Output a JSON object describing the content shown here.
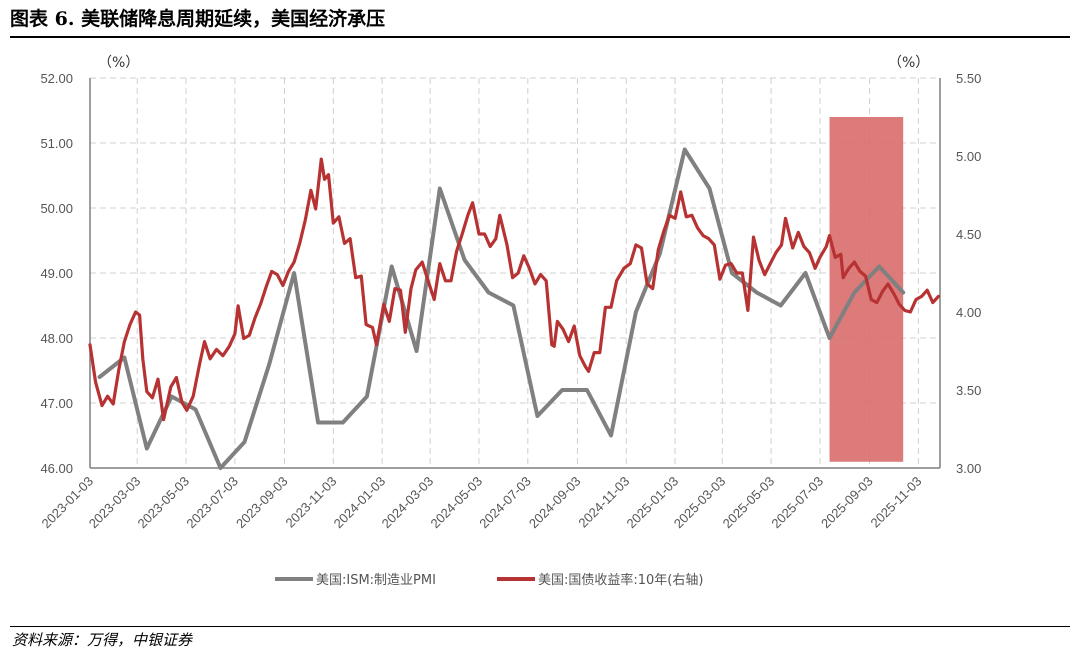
{
  "figure": {
    "title": "图表 6. 美联储降息周期延续，美国经济承压",
    "source": "资料来源：万得，中银证券"
  },
  "chart_data": {
    "type": "line",
    "left_axis_unit": "（%）",
    "right_axis_unit": "（%）",
    "y_left": {
      "min": 46.0,
      "max": 52.0,
      "ticks": [
        "46.00",
        "47.00",
        "48.00",
        "49.00",
        "50.00",
        "51.00",
        "52.00"
      ]
    },
    "y_right": {
      "min": 3.0,
      "max": 5.5,
      "ticks": [
        "3.00",
        "3.50",
        "4.00",
        "4.50",
        "5.00",
        "5.50"
      ]
    },
    "x_range": [
      "2023-01-03",
      "2025-11-30"
    ],
    "x_ticks": [
      "2023-01-03",
      "2023-03-03",
      "2023-05-03",
      "2023-07-03",
      "2023-09-03",
      "2023-11-03",
      "2024-01-03",
      "2024-03-03",
      "2024-05-03",
      "2024-07-03",
      "2024-09-03",
      "2024-11-03",
      "2025-01-03",
      "2025-03-03",
      "2025-05-03",
      "2025-07-03",
      "2025-09-03",
      "2025-11-03"
    ],
    "grid": true,
    "legend_position": "bottom",
    "highlight": {
      "x_start": "2025-07-15",
      "x_end": "2025-10-15",
      "y_right_low": 3.04,
      "y_right_high": 5.25,
      "color": "#d96b6b"
    },
    "series": [
      {
        "name": "美国:ISM:制造业PMI",
        "axis": "left",
        "color": "#808080",
        "points": [
          [
            "2023-01-15",
            47.4
          ],
          [
            "2023-02-15",
            47.7
          ],
          [
            "2023-03-15",
            46.3
          ],
          [
            "2023-04-15",
            47.1
          ],
          [
            "2023-05-15",
            46.9
          ],
          [
            "2023-06-15",
            46.0
          ],
          [
            "2023-07-15",
            46.4
          ],
          [
            "2023-08-15",
            47.6
          ],
          [
            "2023-09-15",
            49.0
          ],
          [
            "2023-10-15",
            46.7
          ],
          [
            "2023-11-15",
            46.7
          ],
          [
            "2023-12-15",
            47.1
          ],
          [
            "2024-01-15",
            49.1
          ],
          [
            "2024-02-15",
            47.8
          ],
          [
            "2024-03-15",
            50.3
          ],
          [
            "2024-04-15",
            49.2
          ],
          [
            "2024-05-15",
            48.7
          ],
          [
            "2024-06-15",
            48.5
          ],
          [
            "2024-07-15",
            46.8
          ],
          [
            "2024-08-15",
            47.2
          ],
          [
            "2024-09-15",
            47.2
          ],
          [
            "2024-10-15",
            46.5
          ],
          [
            "2024-11-15",
            48.4
          ],
          [
            "2024-12-15",
            49.3
          ],
          [
            "2025-01-15",
            50.9
          ],
          [
            "2025-02-15",
            50.3
          ],
          [
            "2025-03-15",
            49.0
          ],
          [
            "2025-04-15",
            48.7
          ],
          [
            "2025-05-15",
            48.5
          ],
          [
            "2025-06-15",
            49.0
          ],
          [
            "2025-07-15",
            48.0
          ],
          [
            "2025-08-15",
            48.7
          ],
          [
            "2025-09-15",
            49.1
          ],
          [
            "2025-10-15",
            48.7
          ]
        ]
      },
      {
        "name": "美国:国债收益率:10年(右轴)",
        "axis": "right",
        "color": "#b73232",
        "points": [
          [
            "2023-01-03",
            3.79
          ],
          [
            "2023-01-10",
            3.55
          ],
          [
            "2023-01-18",
            3.4
          ],
          [
            "2023-01-25",
            3.46
          ],
          [
            "2023-02-01",
            3.41
          ],
          [
            "2023-02-08",
            3.63
          ],
          [
            "2023-02-15",
            3.81
          ],
          [
            "2023-02-22",
            3.92
          ],
          [
            "2023-03-01",
            4.0
          ],
          [
            "2023-03-06",
            3.98
          ],
          [
            "2023-03-10",
            3.7
          ],
          [
            "2023-03-15",
            3.49
          ],
          [
            "2023-03-22",
            3.45
          ],
          [
            "2023-03-29",
            3.57
          ],
          [
            "2023-04-05",
            3.31
          ],
          [
            "2023-04-14",
            3.52
          ],
          [
            "2023-04-21",
            3.58
          ],
          [
            "2023-04-28",
            3.42
          ],
          [
            "2023-05-04",
            3.37
          ],
          [
            "2023-05-12",
            3.46
          ],
          [
            "2023-05-20",
            3.67
          ],
          [
            "2023-05-26",
            3.81
          ],
          [
            "2023-06-02",
            3.7
          ],
          [
            "2023-06-10",
            3.76
          ],
          [
            "2023-06-18",
            3.72
          ],
          [
            "2023-06-26",
            3.78
          ],
          [
            "2023-07-03",
            3.86
          ],
          [
            "2023-07-07",
            4.04
          ],
          [
            "2023-07-14",
            3.83
          ],
          [
            "2023-07-21",
            3.85
          ],
          [
            "2023-07-28",
            3.96
          ],
          [
            "2023-08-04",
            4.05
          ],
          [
            "2023-08-11",
            4.16
          ],
          [
            "2023-08-18",
            4.26
          ],
          [
            "2023-08-25",
            4.24
          ],
          [
            "2023-09-01",
            4.17
          ],
          [
            "2023-09-08",
            4.26
          ],
          [
            "2023-09-15",
            4.32
          ],
          [
            "2023-09-22",
            4.44
          ],
          [
            "2023-09-29",
            4.59
          ],
          [
            "2023-10-06",
            4.78
          ],
          [
            "2023-10-12",
            4.66
          ],
          [
            "2023-10-19",
            4.98
          ],
          [
            "2023-10-23",
            4.85
          ],
          [
            "2023-10-28",
            4.88
          ],
          [
            "2023-11-03",
            4.57
          ],
          [
            "2023-11-10",
            4.61
          ],
          [
            "2023-11-17",
            4.44
          ],
          [
            "2023-11-24",
            4.47
          ],
          [
            "2023-12-01",
            4.22
          ],
          [
            "2023-12-08",
            4.23
          ],
          [
            "2023-12-14",
            3.92
          ],
          [
            "2023-12-22",
            3.9
          ],
          [
            "2023-12-27",
            3.79
          ],
          [
            "2024-01-05",
            4.05
          ],
          [
            "2024-01-12",
            3.94
          ],
          [
            "2024-01-19",
            4.15
          ],
          [
            "2024-01-26",
            4.14
          ],
          [
            "2024-02-01",
            3.87
          ],
          [
            "2024-02-08",
            4.15
          ],
          [
            "2024-02-14",
            4.27
          ],
          [
            "2024-02-22",
            4.32
          ],
          [
            "2024-03-01",
            4.19
          ],
          [
            "2024-03-08",
            4.08
          ],
          [
            "2024-03-15",
            4.31
          ],
          [
            "2024-03-22",
            4.2
          ],
          [
            "2024-03-29",
            4.2
          ],
          [
            "2024-04-05",
            4.39
          ],
          [
            "2024-04-12",
            4.5
          ],
          [
            "2024-04-19",
            4.62
          ],
          [
            "2024-04-25",
            4.7
          ],
          [
            "2024-05-03",
            4.5
          ],
          [
            "2024-05-10",
            4.5
          ],
          [
            "2024-05-17",
            4.42
          ],
          [
            "2024-05-24",
            4.47
          ],
          [
            "2024-05-29",
            4.62
          ],
          [
            "2024-06-07",
            4.43
          ],
          [
            "2024-06-14",
            4.22
          ],
          [
            "2024-06-21",
            4.25
          ],
          [
            "2024-06-28",
            4.36
          ],
          [
            "2024-07-05",
            4.28
          ],
          [
            "2024-07-12",
            4.18
          ],
          [
            "2024-07-19",
            4.24
          ],
          [
            "2024-07-26",
            4.2
          ],
          [
            "2024-08-02",
            3.79
          ],
          [
            "2024-08-05",
            3.78
          ],
          [
            "2024-08-09",
            3.94
          ],
          [
            "2024-08-16",
            3.89
          ],
          [
            "2024-08-23",
            3.81
          ],
          [
            "2024-08-30",
            3.91
          ],
          [
            "2024-09-06",
            3.72
          ],
          [
            "2024-09-13",
            3.65
          ],
          [
            "2024-09-17",
            3.62
          ],
          [
            "2024-09-24",
            3.74
          ],
          [
            "2024-10-01",
            3.74
          ],
          [
            "2024-10-08",
            4.03
          ],
          [
            "2024-10-15",
            4.03
          ],
          [
            "2024-10-22",
            4.2
          ],
          [
            "2024-10-31",
            4.28
          ],
          [
            "2024-11-08",
            4.31
          ],
          [
            "2024-11-15",
            4.43
          ],
          [
            "2024-11-22",
            4.41
          ],
          [
            "2024-11-29",
            4.18
          ],
          [
            "2024-12-06",
            4.15
          ],
          [
            "2024-12-13",
            4.4
          ],
          [
            "2024-12-20",
            4.52
          ],
          [
            "2024-12-27",
            4.62
          ],
          [
            "2025-01-03",
            4.6
          ],
          [
            "2025-01-10",
            4.77
          ],
          [
            "2025-01-17",
            4.61
          ],
          [
            "2025-01-24",
            4.62
          ],
          [
            "2025-01-31",
            4.54
          ],
          [
            "2025-02-07",
            4.49
          ],
          [
            "2025-02-14",
            4.47
          ],
          [
            "2025-02-21",
            4.43
          ],
          [
            "2025-02-28",
            4.21
          ],
          [
            "2025-03-07",
            4.3
          ],
          [
            "2025-03-14",
            4.31
          ],
          [
            "2025-03-21",
            4.25
          ],
          [
            "2025-03-28",
            4.25
          ],
          [
            "2025-04-04",
            4.01
          ],
          [
            "2025-04-11",
            4.48
          ],
          [
            "2025-04-18",
            4.33
          ],
          [
            "2025-04-25",
            4.24
          ],
          [
            "2025-05-02",
            4.31
          ],
          [
            "2025-05-09",
            4.38
          ],
          [
            "2025-05-16",
            4.43
          ],
          [
            "2025-05-21",
            4.6
          ],
          [
            "2025-05-30",
            4.41
          ],
          [
            "2025-06-06",
            4.51
          ],
          [
            "2025-06-13",
            4.42
          ],
          [
            "2025-06-20",
            4.38
          ],
          [
            "2025-06-27",
            4.28
          ],
          [
            "2025-07-03",
            4.35
          ],
          [
            "2025-07-11",
            4.42
          ],
          [
            "2025-07-15",
            4.49
          ],
          [
            "2025-07-22",
            4.35
          ],
          [
            "2025-07-29",
            4.37
          ],
          [
            "2025-08-01",
            4.22
          ],
          [
            "2025-08-08",
            4.28
          ],
          [
            "2025-08-15",
            4.32
          ],
          [
            "2025-08-22",
            4.26
          ],
          [
            "2025-08-29",
            4.23
          ],
          [
            "2025-09-05",
            4.08
          ],
          [
            "2025-09-12",
            4.06
          ],
          [
            "2025-09-19",
            4.13
          ],
          [
            "2025-09-26",
            4.18
          ],
          [
            "2025-10-03",
            4.12
          ],
          [
            "2025-10-10",
            4.05
          ],
          [
            "2025-10-17",
            4.01
          ],
          [
            "2025-10-24",
            4.0
          ],
          [
            "2025-10-31",
            4.08
          ],
          [
            "2025-11-07",
            4.1
          ],
          [
            "2025-11-14",
            4.14
          ],
          [
            "2025-11-21",
            4.06
          ],
          [
            "2025-11-28",
            4.1
          ]
        ]
      }
    ]
  }
}
